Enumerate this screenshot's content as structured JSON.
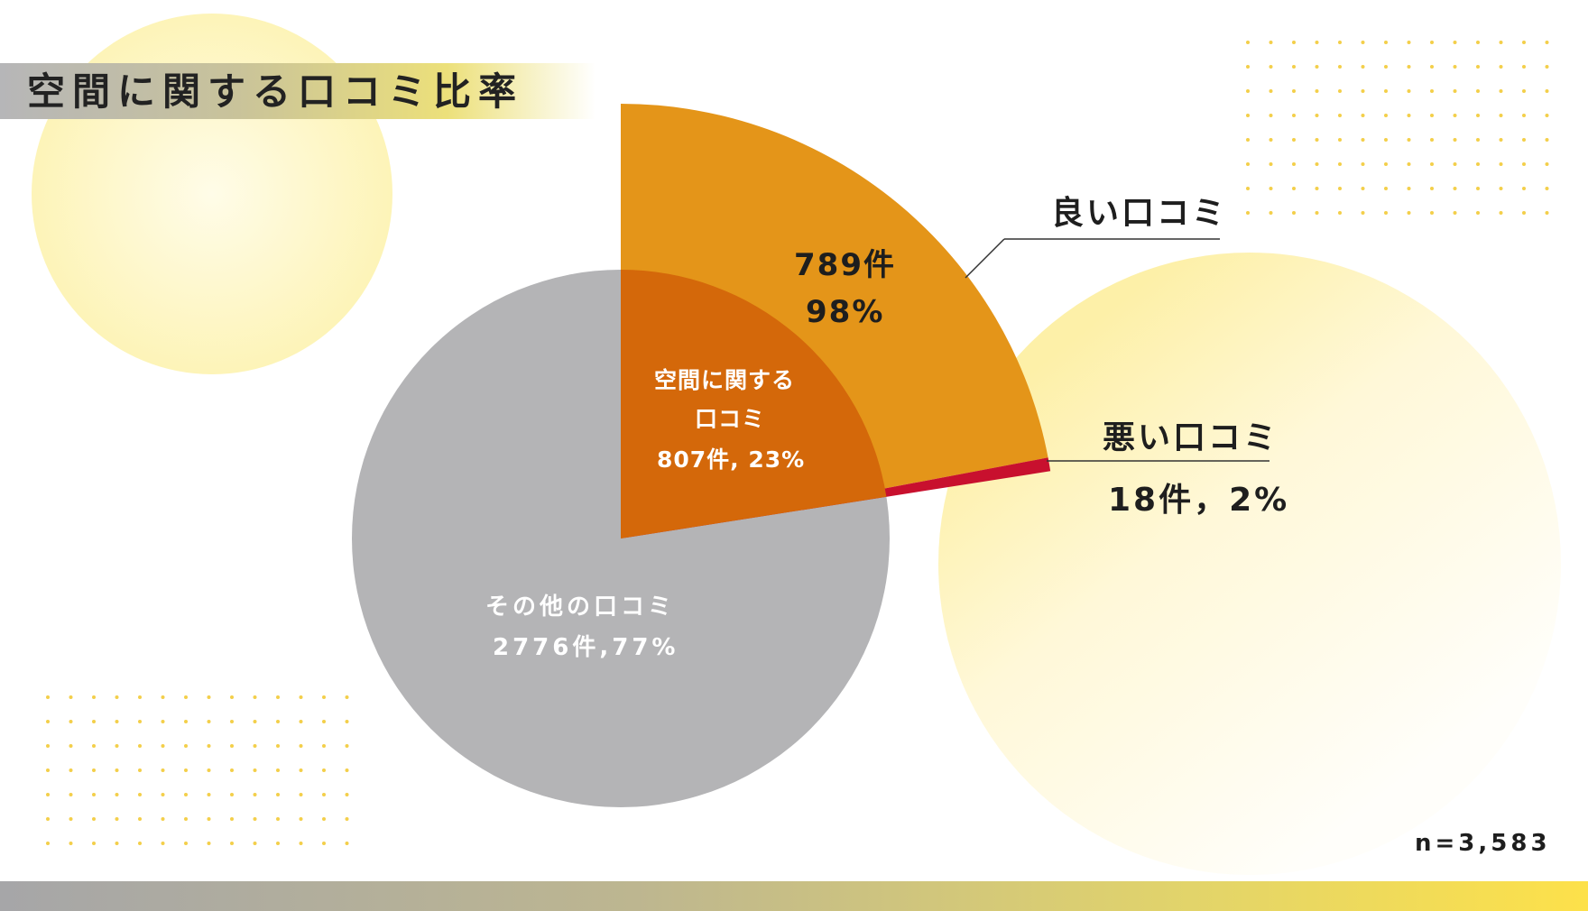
{
  "title": "空間に関する口コミ比率",
  "sample_size": "n=3,583",
  "colors": {
    "other": "#b4b4b6",
    "space": "#d4680a",
    "good": "#e49519",
    "bad": "#c8102e",
    "accent_yellow": "#fde14a"
  },
  "chart_data": [
    {
      "type": "pie",
      "title": "",
      "categories": [
        "空間に関する口コミ",
        "その他の口コミ"
      ],
      "values": [
        807,
        2776
      ],
      "percents": [
        23,
        77
      ],
      "labels": {
        "space": [
          "空間に関する",
          "口コミ",
          "807件, 23%"
        ],
        "other": [
          "その他の口コミ",
          "2776件,77%"
        ]
      }
    },
    {
      "type": "pie",
      "title": "",
      "categories": [
        "良い口コミ",
        "悪い口コミ"
      ],
      "values": [
        789,
        18
      ],
      "percents": [
        98,
        2
      ],
      "labels": {
        "good_name": "良い口コミ",
        "good_count": "789件",
        "good_pct": "98%",
        "bad_name": "悪い口コミ",
        "bad_value": "18件，2%"
      }
    }
  ]
}
